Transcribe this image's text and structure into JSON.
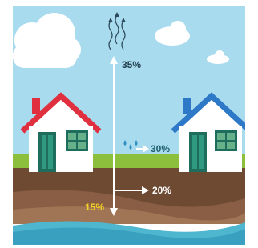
{
  "labels": {
    "evaporation": "35%",
    "runoff": "30%",
    "shallow_infiltration": "20%",
    "deep_infiltration": "15%"
  }
}
